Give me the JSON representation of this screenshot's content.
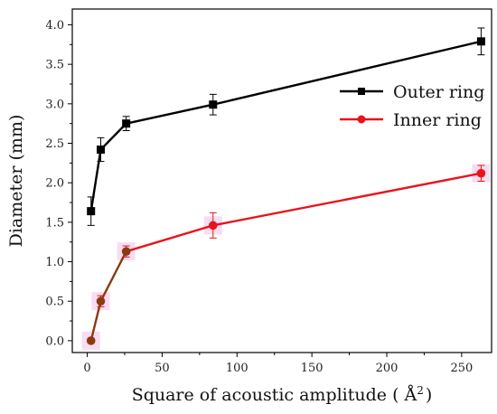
{
  "chart_data": {
    "type": "line",
    "title": "",
    "xlabel": "Square of acoustic amplitude (Å²)",
    "xlabel_main": "Square of acoustic amplitude ( Å",
    "xlabel_sup": "2",
    "xlabel_close": ")",
    "ylabel": "Diameter (mm)",
    "xlim": [
      -10,
      270
    ],
    "ylim": [
      -0.15,
      4.2
    ],
    "xticks": [
      0,
      50,
      100,
      150,
      200,
      250
    ],
    "yticks": [
      0.0,
      0.5,
      1.0,
      1.5,
      2.0,
      2.5,
      3.0,
      3.5,
      4.0
    ],
    "ytick_labels": [
      "0.0",
      "0.5",
      "1.0",
      "1.5",
      "2.0",
      "2.5",
      "3.0",
      "3.5",
      "4.0"
    ],
    "grid": false,
    "legend_position": "top-right",
    "series": [
      {
        "name": "Outer ring",
        "color": "#000000",
        "marker": "square",
        "x": [
          2.5,
          9,
          26,
          84,
          263
        ],
        "y": [
          1.64,
          2.42,
          2.75,
          2.99,
          3.79
        ],
        "err": [
          0.18,
          0.15,
          0.09,
          0.13,
          0.17
        ]
      },
      {
        "name": "Inner ring",
        "color": "#e8141c",
        "marker": "circle",
        "x": [
          2.5,
          9,
          26,
          84,
          263
        ],
        "y": [
          0.0,
          0.5,
          1.13,
          1.46,
          2.12
        ],
        "err": [
          0.03,
          0.07,
          0.07,
          0.16,
          0.1
        ]
      }
    ]
  }
}
